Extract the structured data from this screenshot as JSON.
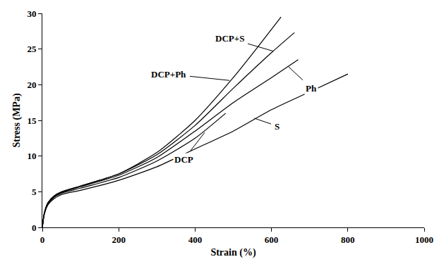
{
  "chart_data": {
    "type": "line",
    "xlabel": "Strain (%)",
    "ylabel": "Stress (MPa)",
    "xlim": [
      0,
      1000
    ],
    "xticks": [
      0,
      200,
      400,
      600,
      800,
      1000
    ],
    "ylim": [
      0,
      30
    ],
    "yticks": [
      0,
      5,
      10,
      15,
      20,
      25,
      30
    ],
    "grid": false,
    "legend": false,
    "series": [
      {
        "name": "DCP+Ph",
        "color": "#000000",
        "x": [
          0,
          5,
          15,
          30,
          50,
          100,
          200,
          300,
          400,
          500,
          560,
          625
        ],
        "values": [
          0,
          2,
          3.5,
          4.3,
          4.9,
          5.8,
          7.5,
          10.5,
          15,
          21,
          25,
          29.5
        ],
        "label": {
          "x": 490,
          "y": 20.6,
          "ax": 330,
          "ay": 21.5
        }
      },
      {
        "name": "DCP+S",
        "color": "#000000",
        "x": [
          0,
          5,
          15,
          30,
          50,
          100,
          200,
          300,
          400,
          500,
          600,
          660
        ],
        "values": [
          0,
          2,
          3.5,
          4.4,
          5,
          5.8,
          7.5,
          10.2,
          14.3,
          19.5,
          24.5,
          27.3
        ],
        "label": {
          "x": 605,
          "y": 24.7,
          "ax": 490,
          "ay": 26.5
        }
      },
      {
        "name": "Ph",
        "color": "#000000",
        "x": [
          0,
          5,
          15,
          30,
          50,
          100,
          200,
          300,
          400,
          500,
          600,
          670
        ],
        "values": [
          0,
          1.9,
          3.4,
          4.3,
          4.9,
          5.7,
          7.3,
          9.8,
          13.5,
          17.5,
          21,
          23.5
        ],
        "label": {
          "x": 645,
          "y": 22.5,
          "ax": 705,
          "ay": 19.5
        }
      },
      {
        "name": "S",
        "color": "#000000",
        "x": [
          0,
          5,
          15,
          30,
          50,
          100,
          200,
          300,
          400,
          500,
          600,
          700,
          800
        ],
        "values": [
          0,
          1.8,
          3.2,
          4,
          4.6,
          5.2,
          6.6,
          8.5,
          11,
          13.5,
          16.5,
          19,
          21.5
        ],
        "label": {
          "x": 555,
          "y": 15.3,
          "ax": 615,
          "ay": 14.2
        }
      },
      {
        "name": "DCP",
        "color": "#000000",
        "x": [
          0,
          5,
          15,
          30,
          50,
          100,
          200,
          300,
          400,
          480
        ],
        "values": [
          0,
          1.9,
          3.3,
          4.2,
          4.8,
          5.5,
          7,
          9.3,
          12.5,
          16
        ],
        "label": {
          "x": 425,
          "y": 13.3,
          "ax": 370,
          "ay": 9.5
        }
      }
    ]
  }
}
